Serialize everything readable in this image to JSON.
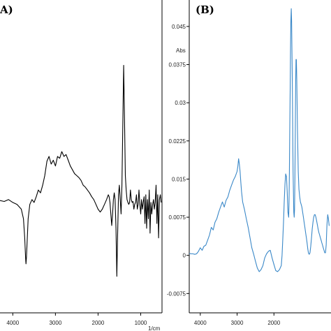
{
  "chart_data": [
    {
      "type": "line",
      "panel_label": "A)",
      "xlabel": "1/cm",
      "ylabel": "",
      "x_ticks": [
        4000,
        3000,
        2000,
        1000
      ],
      "xlim": [
        4300,
        500
      ],
      "ylim": [
        -1.0,
        2.0
      ],
      "grid": false,
      "line_color": "#000000",
      "series": [
        {
          "x": [
            4300,
            4200,
            4100,
            4000,
            3900,
            3800,
            3750,
            3720,
            3700,
            3690,
            3680,
            3660,
            3640,
            3600,
            3550,
            3500,
            3450,
            3400,
            3350,
            3300,
            3250,
            3200,
            3150,
            3100,
            3050,
            3000,
            2950,
            2900,
            2850,
            2800,
            2750,
            2700,
            2650,
            2600,
            2550,
            2500,
            2450,
            2400,
            2350,
            2300,
            2250,
            2200,
            2150,
            2100,
            2050,
            2000,
            1950,
            1900,
            1850,
            1800,
            1760,
            1740,
            1720,
            1700,
            1680,
            1660,
            1640,
            1620,
            1600,
            1580,
            1560,
            1540,
            1520,
            1500,
            1480,
            1460,
            1440,
            1420,
            1400,
            1380,
            1360,
            1340,
            1320,
            1300,
            1280,
            1260,
            1240,
            1220,
            1200,
            1180,
            1160,
            1140,
            1120,
            1100,
            1080,
            1060,
            1040,
            1020,
            1000,
            980,
            960,
            940,
            920,
            900,
            880,
            860,
            840,
            820,
            800,
            780,
            760,
            740,
            720,
            700,
            680,
            660,
            640,
            620,
            600,
            580,
            560,
            540,
            520
          ],
          "y": [
            0.04,
            0.03,
            0.05,
            0.02,
            0.0,
            -0.05,
            -0.15,
            -0.35,
            -0.55,
            -0.62,
            -0.55,
            -0.35,
            -0.15,
            0.0,
            0.05,
            0.02,
            0.08,
            0.15,
            0.12,
            0.2,
            0.3,
            0.45,
            0.5,
            0.42,
            0.46,
            0.4,
            0.5,
            0.48,
            0.55,
            0.5,
            0.52,
            0.46,
            0.4,
            0.36,
            0.32,
            0.3,
            0.28,
            0.25,
            0.2,
            0.18,
            0.15,
            0.12,
            0.08,
            0.05,
            0.0,
            -0.05,
            -0.08,
            -0.05,
            0.0,
            0.05,
            0.1,
            0.08,
            0.02,
            -0.1,
            -0.22,
            -0.1,
            0.05,
            0.12,
            0.05,
            -0.25,
            -0.75,
            -0.3,
            0.1,
            0.2,
            0.05,
            -0.1,
            0.2,
            0.8,
            1.45,
            0.9,
            0.3,
            0.15,
            0.05,
            0.02,
            0.0,
            0.02,
            0.15,
            0.05,
            0.02,
            0.03,
            -0.05,
            0.0,
            0.02,
            0.1,
            -0.05,
            0.0,
            0.15,
            0.0,
            -0.1,
            0.05,
            -0.05,
            0.02,
            0.08,
            -0.2,
            0.1,
            -0.25,
            0.05,
            -0.15,
            0.15,
            -0.3,
            0.02,
            -0.1,
            0.0,
            0.05,
            -0.05,
            0.02,
            0.2,
            -0.2,
            0.1,
            -0.35,
            0.05,
            0.1,
            0.02
          ]
        }
      ]
    },
    {
      "type": "line",
      "panel_label": "(B)",
      "ylabel": "Abs",
      "xlabel": "",
      "x_ticks": [
        4000,
        3000,
        2000
      ],
      "xlim": [
        4300,
        450
      ],
      "y_ticks": [
        "-0.0075",
        "0",
        "0.0075",
        "0.015",
        "0.0225",
        "0.03",
        "0.0375",
        "0.045"
      ],
      "ylim": [
        -0.0113,
        0.0502
      ],
      "grid": false,
      "line_color": "#3a88c8",
      "series": [
        {
          "x": [
            4300,
            4250,
            4200,
            4150,
            4100,
            4050,
            4000,
            3950,
            3900,
            3850,
            3800,
            3750,
            3700,
            3650,
            3600,
            3550,
            3500,
            3450,
            3400,
            3350,
            3300,
            3250,
            3200,
            3150,
            3100,
            3050,
            3000,
            2980,
            2960,
            2940,
            2920,
            2900,
            2880,
            2850,
            2800,
            2750,
            2700,
            2650,
            2600,
            2550,
            2500,
            2450,
            2400,
            2350,
            2300,
            2250,
            2200,
            2150,
            2100,
            2050,
            2000,
            1950,
            1900,
            1850,
            1800,
            1780,
            1760,
            1740,
            1720,
            1700,
            1680,
            1660,
            1640,
            1620,
            1600,
            1590,
            1580,
            1570,
            1560,
            1550,
            1540,
            1530,
            1520,
            1500,
            1480,
            1460,
            1450,
            1440,
            1430,
            1420,
            1410,
            1400,
            1390,
            1380,
            1360,
            1340,
            1320,
            1300,
            1280,
            1260,
            1240,
            1220,
            1200,
            1180,
            1160,
            1140,
            1120,
            1100,
            1080,
            1060,
            1040,
            1020,
            1000,
            980,
            960,
            940,
            920,
            900,
            880,
            860,
            840,
            820,
            800,
            780,
            760,
            740,
            720,
            700,
            680,
            660,
            640,
            620,
            600,
            580,
            560,
            540,
            520,
            500
          ],
          "y": [
            0.0004,
            0.0003,
            0.0003,
            0.0002,
            0.0003,
            0.0008,
            0.0015,
            0.001,
            0.0018,
            0.002,
            0.003,
            0.004,
            0.0055,
            0.005,
            0.0065,
            0.0072,
            0.0085,
            0.0095,
            0.0105,
            0.0095,
            0.0108,
            0.0115,
            0.0128,
            0.0138,
            0.0148,
            0.0155,
            0.0165,
            0.0175,
            0.019,
            0.018,
            0.0165,
            0.0145,
            0.0125,
            0.0105,
            0.009,
            0.0072,
            0.0055,
            0.0035,
            0.0015,
            0.0002,
            -0.0012,
            -0.0025,
            -0.0032,
            -0.0028,
            -0.002,
            -0.0005,
            0.0003,
            0.0008,
            0.001,
            -0.0005,
            -0.0018,
            -0.003,
            -0.0032,
            -0.0028,
            -0.002,
            0.0,
            0.003,
            0.0065,
            0.0105,
            0.014,
            0.016,
            0.0155,
            0.0125,
            0.0085,
            0.0075,
            0.0105,
            0.016,
            0.024,
            0.032,
            0.04,
            0.046,
            0.0485,
            0.046,
            0.034,
            0.0165,
            0.0085,
            0.0075,
            0.009,
            0.015,
            0.025,
            0.034,
            0.0385,
            0.0385,
            0.0345,
            0.0245,
            0.0165,
            0.013,
            0.0115,
            0.0105,
            0.01,
            0.0095,
            0.0085,
            0.0075,
            0.0065,
            0.0055,
            0.0045,
            0.0035,
            0.0025,
            0.0012,
            0.0004,
            0.0002,
            0.0005,
            0.0018,
            0.0035,
            0.0052,
            0.0065,
            0.0075,
            0.008,
            0.008,
            0.0075,
            0.0068,
            0.006,
            0.0052,
            0.0045,
            0.004,
            0.0035,
            0.003,
            0.0025,
            0.002,
            0.0015,
            0.001,
            0.0005,
            0.0005,
            0.002,
            0.006,
            0.008,
            0.0072,
            0.0058
          ]
        }
      ]
    }
  ]
}
